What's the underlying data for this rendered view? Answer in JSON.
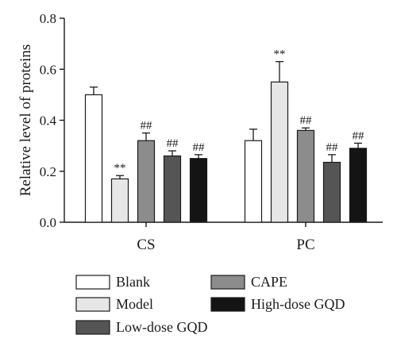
{
  "chart_data": {
    "type": "bar",
    "title": "",
    "xlabel": "",
    "ylabel": "Relative level of proteins",
    "ylim": [
      0,
      0.8
    ],
    "yticks": [
      "0.0",
      "0.2",
      "0.4",
      "0.6",
      "0.8"
    ],
    "yticks_values": [
      0,
      0.2,
      0.4,
      0.6,
      0.8
    ],
    "grid": false,
    "legend_position": "bottom",
    "categories": [
      "CS",
      "PC"
    ],
    "series": [
      {
        "name": "Blank",
        "color": "#ffffff",
        "values": [
          0.5,
          0.32
        ],
        "errors": [
          0.03,
          0.045
        ],
        "labels": [
          "",
          ""
        ]
      },
      {
        "name": "Model",
        "color": "#e6e6e6",
        "values": [
          0.17,
          0.55
        ],
        "errors": [
          0.013,
          0.08
        ],
        "labels": [
          "**",
          "**"
        ]
      },
      {
        "name": "CAPE",
        "color": "#8c8c8c",
        "values": [
          0.32,
          0.36
        ],
        "errors": [
          0.03,
          0.01
        ],
        "labels": [
          "##",
          "##"
        ]
      },
      {
        "name": "Low-dose GQD",
        "color": "#555555",
        "values": [
          0.26,
          0.235
        ],
        "errors": [
          0.02,
          0.03
        ],
        "labels": [
          "##",
          "##"
        ]
      },
      {
        "name": "High-dose GQD",
        "color": "#141414",
        "values": [
          0.25,
          0.29
        ],
        "errors": [
          0.015,
          0.02
        ],
        "labels": [
          "##",
          "##"
        ]
      }
    ],
    "legend_order": [
      "Blank",
      "CAPE",
      "Model",
      "High-dose GQD",
      "Low-dose GQD"
    ]
  }
}
